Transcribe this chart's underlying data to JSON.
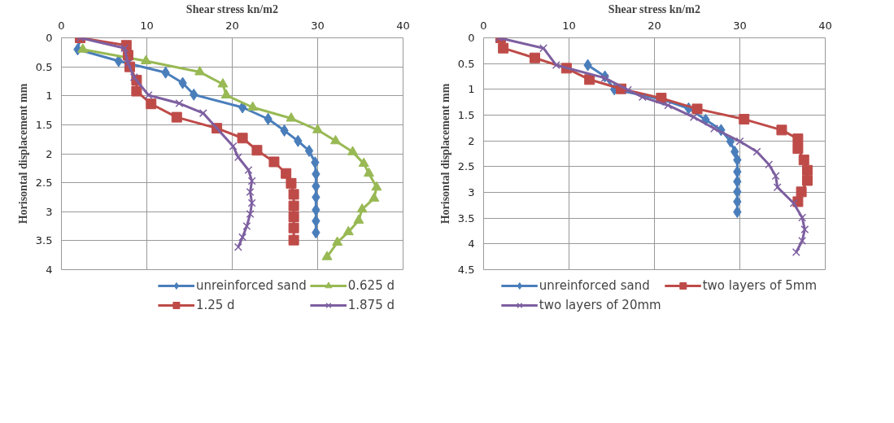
{
  "chart_data": [
    {
      "type": "line",
      "xlabel": "Shear stress kn/m2",
      "ylabel": "Horisontal displacement mm",
      "xlim": [
        0,
        40
      ],
      "xticks": [
        0,
        10,
        20,
        30,
        40
      ],
      "ylim": [
        4,
        0
      ],
      "yticks": [
        0,
        0.5,
        1,
        1.5,
        2,
        2.5,
        3,
        3.5,
        4
      ],
      "grid": true,
      "legend": "bottom",
      "series": [
        {
          "name": "unreinforced sand",
          "color": "#4a7ebb",
          "marker": "diamond",
          "x": [
            2.2,
            1.9,
            6.7,
            12.2,
            14.2,
            15.5,
            21.2,
            24.2,
            26.1,
            27.7,
            29.0,
            29.7,
            29.8,
            29.8,
            29.8,
            29.8,
            29.8,
            29.8
          ],
          "values": [
            0,
            0.2,
            0.4,
            0.6,
            0.78,
            0.98,
            1.2,
            1.4,
            1.6,
            1.78,
            1.95,
            2.15,
            2.35,
            2.56,
            2.75,
            2.97,
            3.16,
            3.36
          ]
        },
        {
          "name": "0.625 d",
          "color": "#98b954",
          "marker": "triangle",
          "x": [
            2.5,
            9.9,
            16.2,
            18.9,
            19.3,
            22.4,
            26.9,
            30.0,
            32.1,
            34.1,
            35.4,
            36.0,
            36.9,
            36.6,
            35.2,
            34.8,
            33.6,
            32.3,
            31.1
          ],
          "values": [
            0.2,
            0.4,
            0.59,
            0.8,
            0.99,
            1.2,
            1.39,
            1.59,
            1.78,
            1.97,
            2.17,
            2.34,
            2.58,
            2.77,
            2.96,
            3.15,
            3.35,
            3.53,
            3.78
          ]
        },
        {
          "name": "1.25 d",
          "color": "#be4b48",
          "marker": "square",
          "x": [
            2.2,
            7.6,
            7.8,
            8.0,
            8.8,
            8.8,
            10.5,
            13.5,
            18.2,
            21.2,
            22.9,
            24.9,
            26.3,
            26.9,
            27.2,
            27.2,
            27.2,
            27.2,
            27.2
          ],
          "values": [
            0,
            0.13,
            0.3,
            0.5,
            0.73,
            0.92,
            1.14,
            1.37,
            1.56,
            1.73,
            1.94,
            2.14,
            2.34,
            2.51,
            2.7,
            2.9,
            3.09,
            3.28,
            3.49
          ]
        },
        {
          "name": "1.875 d",
          "color": "#7d5fa0",
          "marker": "cross",
          "x": [
            2.2,
            7.4,
            7.8,
            8.5,
            10.2,
            13.8,
            16.6,
            20.1,
            20.7,
            21.9,
            22.3,
            22.1,
            22.3,
            22.1,
            21.7,
            21.2,
            20.7
          ],
          "values": [
            0,
            0.18,
            0.44,
            0.68,
            0.99,
            1.13,
            1.3,
            1.87,
            2.06,
            2.28,
            2.47,
            2.66,
            2.85,
            3.04,
            3.25,
            3.44,
            3.61
          ]
        }
      ]
    },
    {
      "type": "line",
      "xlabel": "Shear stress kn/m2",
      "ylabel": "Horisontal displacement mm",
      "xlim": [
        0,
        40
      ],
      "xticks": [
        0,
        10,
        20,
        30,
        40
      ],
      "ylim": [
        4.5,
        0
      ],
      "yticks": [
        0,
        0.5,
        1,
        1.5,
        2,
        2.5,
        3,
        3.5,
        4,
        4.5
      ],
      "grid": true,
      "legend": "bottom",
      "series": [
        {
          "name": "unreinforced sand",
          "color": "#4a7ebb",
          "marker": "diamond",
          "x": [
            12.2,
            14.2,
            15.3,
            21.0,
            24.0,
            26.0,
            27.8,
            28.9,
            29.4,
            29.7,
            29.7,
            29.7,
            29.7,
            29.7,
            29.7
          ],
          "values": [
            0.53,
            0.75,
            1.0,
            1.2,
            1.37,
            1.59,
            1.79,
            2.01,
            2.21,
            2.37,
            2.6,
            2.79,
            2.99,
            3.18,
            3.38
          ]
        },
        {
          "name": "two layers of 5mm",
          "color": "#be4b48",
          "marker": "square",
          "x": [
            2.0,
            2.3,
            6.0,
            9.7,
            12.4,
            16.1,
            20.8,
            25.0,
            30.5,
            34.9,
            36.8,
            36.8,
            37.5,
            37.9,
            37.9,
            37.2,
            36.8
          ],
          "values": [
            0,
            0.2,
            0.39,
            0.59,
            0.81,
            0.99,
            1.17,
            1.38,
            1.58,
            1.79,
            1.96,
            2.15,
            2.37,
            2.57,
            2.77,
            2.99,
            3.18
          ]
        },
        {
          "name": "two layers of 20mm",
          "color": "#7d5fa0",
          "marker": "cross",
          "x": [
            1.8,
            7.0,
            8.5,
            14.2,
            16.9,
            18.6,
            21.6,
            24.6,
            27.0,
            30.0,
            32.0,
            33.4,
            34.2,
            34.4,
            36.3,
            37.3,
            37.6,
            37.3,
            36.6
          ],
          "values": [
            0,
            0.2,
            0.53,
            0.78,
            1.01,
            1.15,
            1.31,
            1.54,
            1.76,
            2.01,
            2.21,
            2.46,
            2.68,
            2.9,
            3.21,
            3.49,
            3.72,
            3.94,
            4.16
          ]
        }
      ]
    }
  ]
}
